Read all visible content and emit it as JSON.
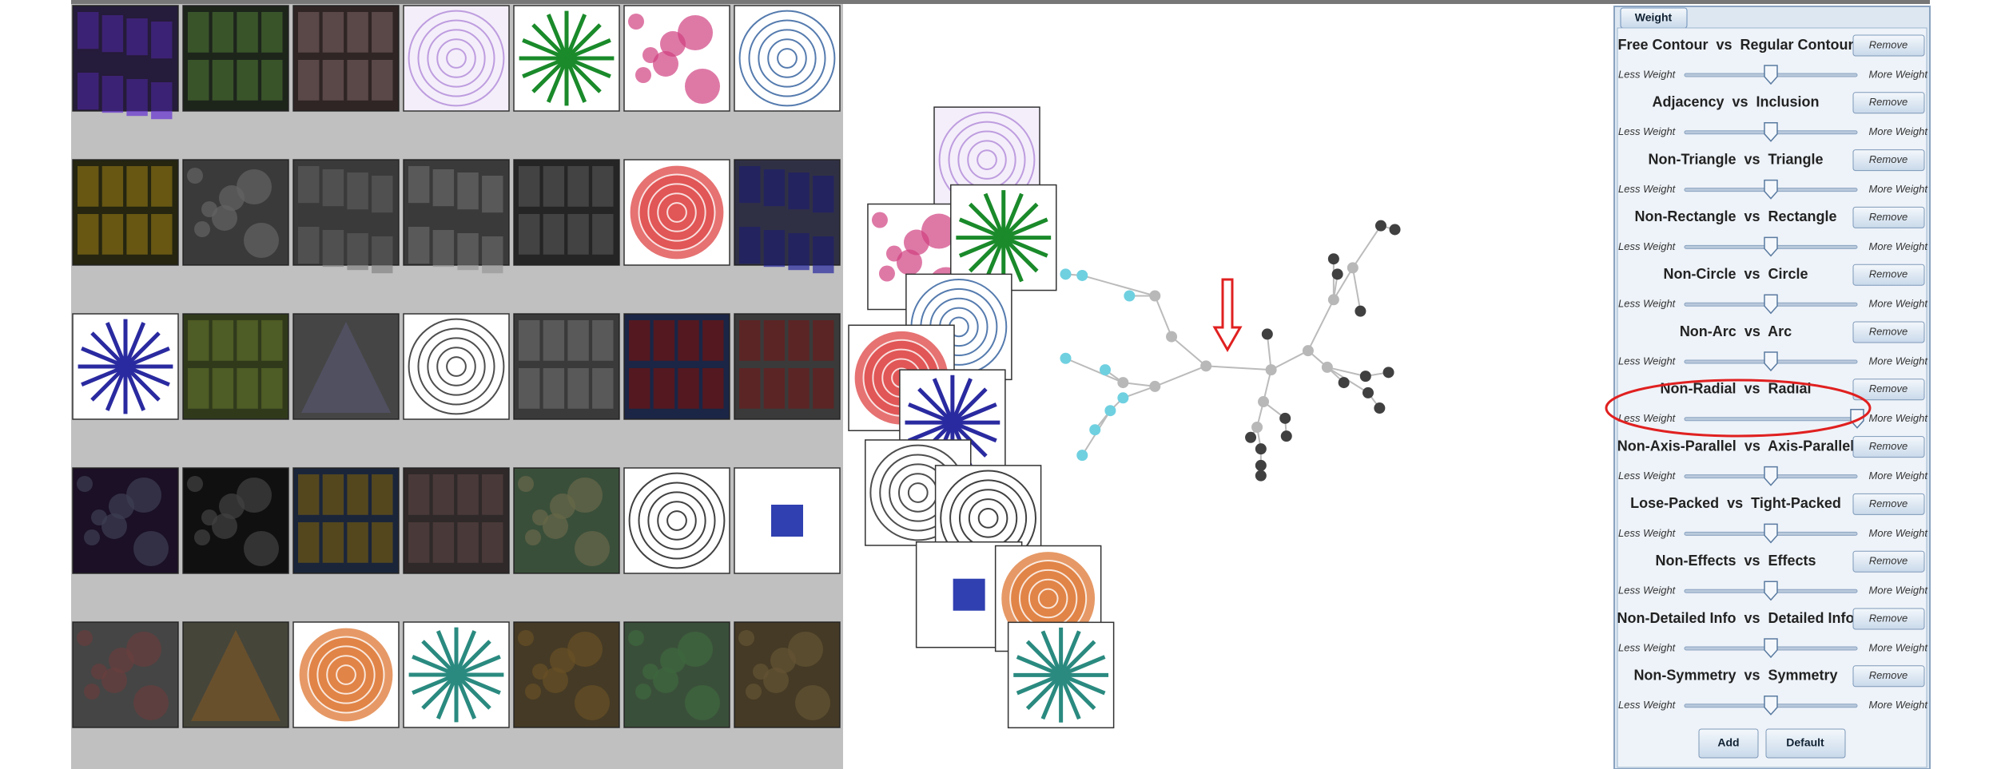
{
  "panel": {
    "tab": "Weight",
    "remove": "Remove",
    "less": "Less Weight",
    "more": "More Weight",
    "criteria": [
      {
        "label": "Free Contour  vs  Regular Contour",
        "value": 50
      },
      {
        "label": "Adjacency  vs  Inclusion",
        "value": 50
      },
      {
        "label": "Non-Triangle  vs  Triangle",
        "value": 50
      },
      {
        "label": "Non-Rectangle  vs  Rectangle",
        "value": 50
      },
      {
        "label": "Non-Circle  vs  Circle",
        "value": 50
      },
      {
        "label": "Non-Arc  vs  Arc",
        "value": 50
      },
      {
        "label": "Non-Radial  vs  Radial",
        "value": 100
      },
      {
        "label": "Non-Axis-Parallel  vs  Axis-Parallel",
        "value": 50
      },
      {
        "label": "Lose-Packed  vs  Tight-Packed",
        "value": 50
      },
      {
        "label": "Non-Effects  vs  Effects",
        "value": 50
      },
      {
        "label": "Non-Detailed Info  vs  Detailed Info",
        "value": 50
      },
      {
        "label": "Non-Symmetry  vs  Symmetry",
        "value": 50
      }
    ],
    "buttons": {
      "add": "Add",
      "default": "Default"
    }
  }
}
